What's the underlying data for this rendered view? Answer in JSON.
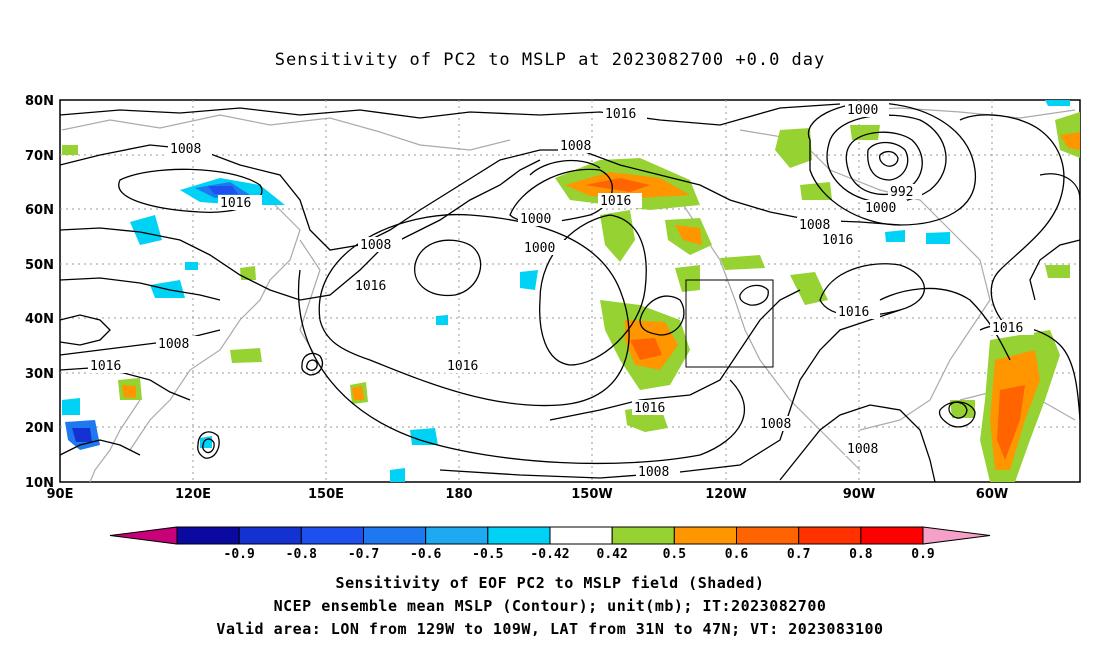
{
  "title": "Sensitivity of PC2 to MSLP at 2023082700 +0.0 day",
  "lat_labels": [
    "80N",
    "70N",
    "60N",
    "50N",
    "40N",
    "30N",
    "20N",
    "10N"
  ],
  "lon_labels": [
    "90E",
    "120E",
    "150E",
    "180",
    "150W",
    "120W",
    "90W",
    "60W"
  ],
  "colorbar": {
    "labels": [
      "-0.9",
      "-0.8",
      "-0.7",
      "-0.6",
      "-0.5",
      "-0.42",
      "0.42",
      "0.5",
      "0.6",
      "0.7",
      "0.8",
      "0.9"
    ],
    "colors": [
      "#c8007a",
      "#0a0aa0",
      "#1432d2",
      "#1e50f0",
      "#1e78f0",
      "#1eaaf0",
      "#00d2f5",
      "#ffffff",
      "#96d232",
      "#ff9600",
      "#ff6400",
      "#ff3200",
      "#ff0000",
      "#f5a0c8"
    ]
  },
  "contour_labels": [
    "1016",
    "1008",
    "1000",
    "1008",
    "1016",
    "1008",
    "1016",
    "1016",
    "1008",
    "1016",
    "1000",
    "1016",
    "992",
    "1000",
    "1008",
    "1016",
    "1008",
    "1016",
    "1016",
    "1008",
    "1016",
    "1016",
    "1008",
    "1008"
  ],
  "captions": [
    "Sensitivity of EOF PC2 to MSLP field (Shaded)",
    "NCEP ensemble mean MSLP (Contour); unit(mb); IT:2023082700",
    "Valid area: LON from 129W to 109W, LAT from 31N to 47N; VT: 2023083100"
  ]
}
